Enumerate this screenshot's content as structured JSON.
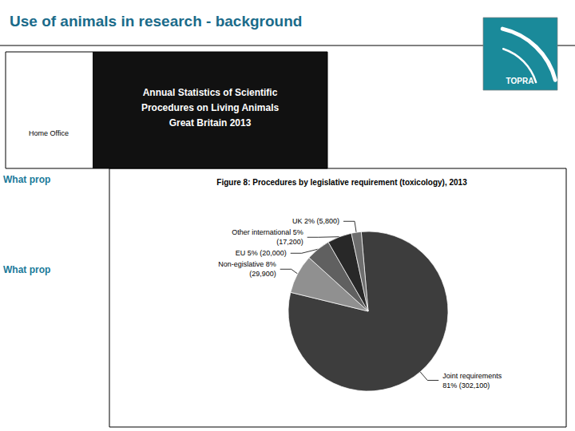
{
  "chart_data": {
    "type": "pie",
    "title": "Use of animals in research - background",
    "subtitle": "Figure 8: Procedures by legislative requirement (toxicology), 2013",
    "categories": [
      "Joint requirements\n81% (302,100)",
      "Non-egislative 8%\n(29,900)",
      "EU 5% (20,000)",
      "Other international 5%\n(17,200)",
      "UK 2% (5,800)"
    ],
    "values": [
      81,
      8,
      5,
      5,
      2
    ],
    "colors": [
      "#3d3d3d",
      "#909090",
      "#606060",
      "#282828",
      "#6e6e6e"
    ],
    "annotations": [
      "Annual Statistics of Scientific\nProcedures on Living Animals\nGreat Britain 2013",
      "Home Office",
      "TOPRA",
      "What prop",
      "What prop"
    ]
  }
}
